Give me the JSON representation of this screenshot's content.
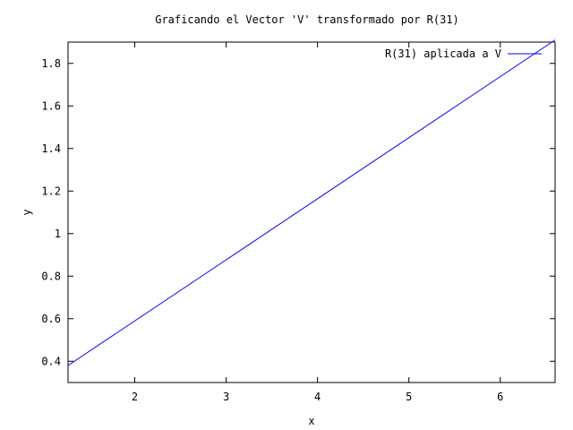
{
  "chart_data": {
    "type": "line",
    "title": "Graficando el Vector 'V' transformado por R(31)",
    "xlabel": "x",
    "ylabel": "y",
    "xlim": [
      1.27,
      6.6
    ],
    "ylim": [
      0.3,
      1.9
    ],
    "x_ticks": [
      2,
      3,
      4,
      5,
      6
    ],
    "y_ticks": [
      0.4,
      0.6,
      0.8,
      1,
      1.2,
      1.4,
      1.6,
      1.8
    ],
    "grid": false,
    "legend_position": "top-right",
    "series": [
      {
        "name": "R(31) aplicada a V",
        "color": "#0000ff",
        "x": [
          1.27,
          6.6
        ],
        "y": [
          0.38,
          1.91
        ]
      }
    ]
  }
}
